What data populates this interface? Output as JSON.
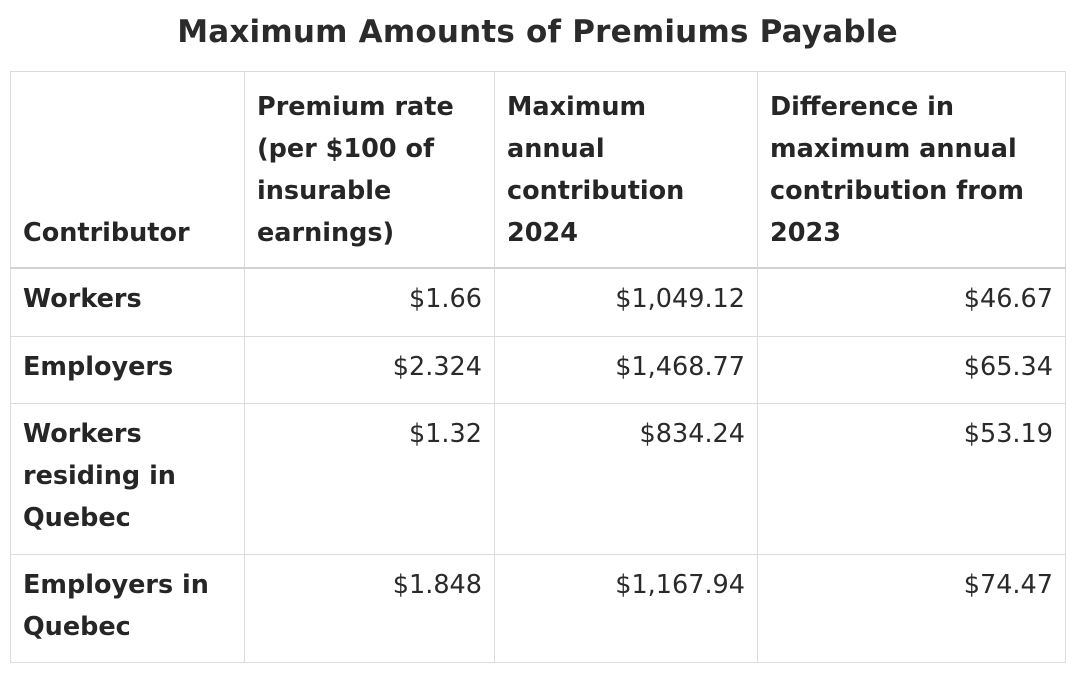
{
  "title": "Maximum Amounts of Premiums Payable",
  "columns": [
    "Contributor",
    "Premium rate (per $100 of insurable earnings)",
    "Maximum annual contribution 2024",
    "Difference in maximum annual contribution from 2023"
  ],
  "rows": [
    {
      "contributor": "Workers",
      "rate": "$1.66",
      "max_2024": "$1,049.12",
      "diff_2023": "$46.67"
    },
    {
      "contributor": "Employers",
      "rate": "$2.324",
      "max_2024": "$1,468.77",
      "diff_2023": "$65.34"
    },
    {
      "contributor": "Workers residing in Quebec",
      "rate": "$1.32",
      "max_2024": "$834.24",
      "diff_2023": "$53.19"
    },
    {
      "contributor": "Employers in Quebec",
      "rate": "$1.848",
      "max_2024": "$1,167.94",
      "diff_2023": "$74.47"
    }
  ]
}
